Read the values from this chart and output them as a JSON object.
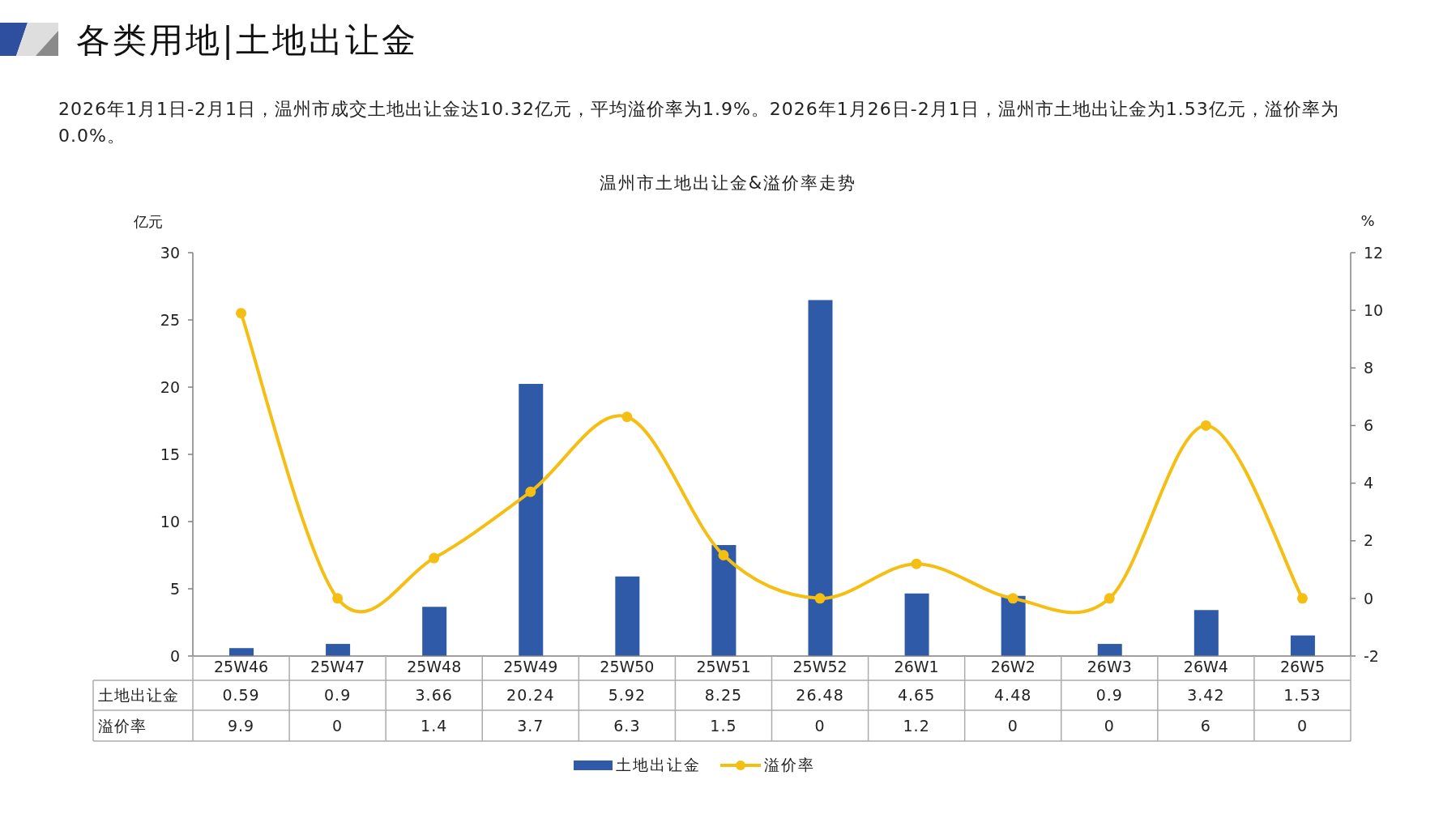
{
  "chart_data": {
    "type": "bar",
    "title": "各类用地|土地出让金",
    "subtitle": "2026年1月1日-2月1日，温州市成交土地出让金达10.32亿元，平均溢价率为1.9%。2026年1月26日-2月1日，温州市土地出让金为1.53亿元，溢价率为0.0%。",
    "annotations": [
      "温州市土地出让金&溢价率走势"
    ],
    "ylabel": "亿元",
    "y2label": "%",
    "categories": [
      "25W46",
      "25W47",
      "25W48",
      "25W49",
      "25W50",
      "25W51",
      "25W52",
      "26W1",
      "26W2",
      "26W3",
      "26W4",
      "26W5"
    ],
    "series": [
      {
        "name": "土地出让金",
        "color": "#2e5aa8",
        "values": [
          0.59,
          0.9,
          3.66,
          20.24,
          5.92,
          8.25,
          26.48,
          4.65,
          4.48,
          0.9,
          3.42,
          1.53
        ]
      },
      {
        "name": "溢价率",
        "type": "line",
        "axis": "y2",
        "color": "#f5be13",
        "values": [
          9.9,
          0,
          1.4,
          3.7,
          6.3,
          1.5,
          0,
          1.2,
          0,
          0,
          6,
          0
        ]
      }
    ],
    "ylim": [
      0,
      30
    ],
    "yticks": [
      0,
      5,
      10,
      15,
      20,
      25,
      30
    ],
    "y2lim": [
      -2,
      12
    ],
    "y2ticks": [
      -2,
      0,
      2,
      4,
      6,
      8,
      10,
      12
    ],
    "legend": "bottom",
    "marker": "circle",
    "data_labels": true
  }
}
